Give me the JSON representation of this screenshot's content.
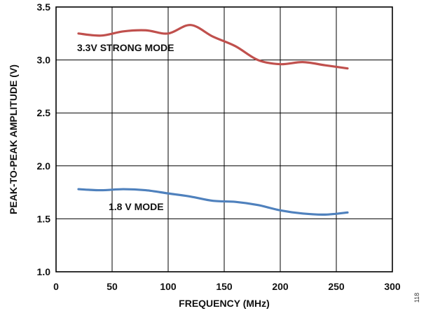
{
  "chart_data": {
    "type": "line",
    "xlabel": "FREQUENCY (MHz)",
    "ylabel": "PEAK-TO-PEAK AMPLITUDE (V)",
    "xlim": [
      0,
      300
    ],
    "ylim": [
      1.0,
      3.5
    ],
    "x_ticks": [
      "0",
      "50",
      "100",
      "150",
      "200",
      "250",
      "300"
    ],
    "y_ticks": [
      "1.0",
      "1.5",
      "2.0",
      "2.5",
      "3.0",
      "3.5"
    ],
    "grid": true,
    "series": [
      {
        "name": "3.3V STRONG MODE",
        "color": "#c0504d",
        "x": [
          20,
          40,
          60,
          80,
          100,
          120,
          140,
          160,
          180,
          200,
          220,
          240,
          260
        ],
        "y": [
          3.25,
          3.23,
          3.27,
          3.28,
          3.25,
          3.33,
          3.22,
          3.13,
          3.0,
          2.96,
          2.98,
          2.95,
          2.92
        ]
      },
      {
        "name": "1.8 V MODE",
        "color": "#4f81bd",
        "x": [
          20,
          40,
          60,
          80,
          100,
          120,
          140,
          160,
          180,
          200,
          220,
          240,
          260
        ],
        "y": [
          1.78,
          1.77,
          1.78,
          1.77,
          1.74,
          1.71,
          1.67,
          1.66,
          1.63,
          1.58,
          1.55,
          1.54,
          1.56
        ]
      }
    ],
    "annotations": [
      "3.3V STRONG MODE",
      "1.8 V MODE"
    ]
  },
  "figure_number": "118"
}
